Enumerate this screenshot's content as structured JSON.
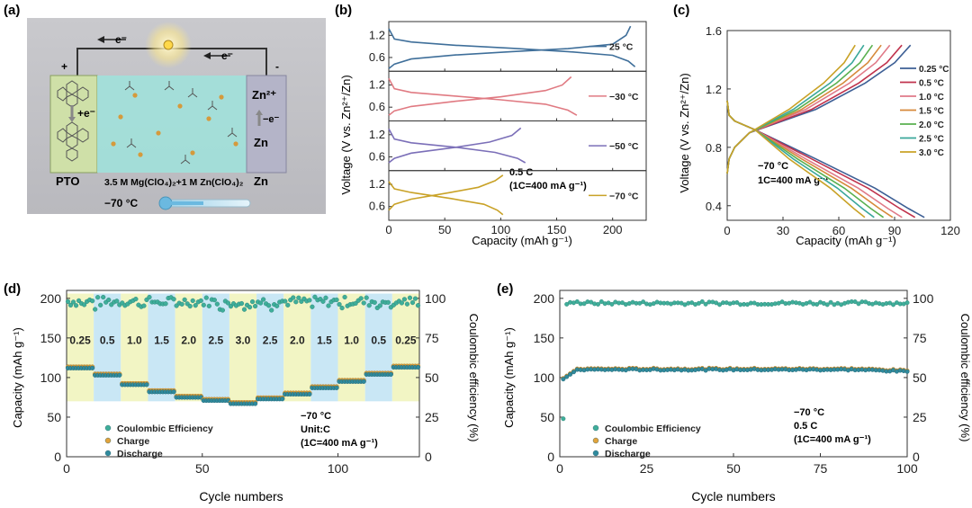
{
  "colors": {
    "c25": "#3f6f9a",
    "cm30": "#e07a82",
    "cm50": "#7b6fb8",
    "cm70": "#c9a227",
    "r025": "#3d5f95",
    "r05": "#c0334d",
    "r10": "#e07a88",
    "r15": "#d6893a",
    "r20": "#5ab04f",
    "r25": "#3aa79a",
    "r30": "#c9a227",
    "ce": "#3fae9a",
    "charge": "#e2a33b",
    "discharge": "#2f8a9d",
    "band_yellow": "#f2f5c4",
    "band_blue": "#c9e7f5"
  },
  "panel_a": {
    "label": "(a)",
    "electron1": "e⁻",
    "electron2": "e⁻",
    "plus": "+",
    "minus": "-",
    "plus_e": "+e⁻",
    "minus_e": "−e⁻",
    "zn2": "Zn²⁺",
    "zn_mid": "Zn",
    "zn_bottom": "Zn",
    "pto": "PTO",
    "electrolyte": "3.5 M Mg(ClO₄)₂+1 M Zn(ClO₄)₂",
    "temp": "−70 °C"
  },
  "chart_data": [
    {
      "id": "b",
      "type": "line",
      "label": "(b)",
      "xlabel": "Capacity (mAh g⁻¹)",
      "ylabel": "Voltage (V vs. Zn²⁺/Zn)",
      "xlim": [
        0,
        230
      ],
      "xticks": [
        0,
        50,
        100,
        150,
        200
      ],
      "subplots": [
        {
          "name": "25 °C",
          "ylim": [
            0.3,
            1.5
          ],
          "yticks": [
            0.6,
            1.2
          ],
          "charge_x": [
            0,
            5,
            20,
            60,
            110,
            160,
            200,
            212,
            216
          ],
          "charge_y": [
            0.3,
            0.42,
            0.56,
            0.67,
            0.76,
            0.84,
            0.96,
            1.2,
            1.45
          ],
          "discharge_x": [
            0,
            5,
            20,
            60,
            110,
            160,
            200,
            214,
            220
          ],
          "discharge_y": [
            1.38,
            1.1,
            1.02,
            0.93,
            0.85,
            0.76,
            0.66,
            0.5,
            0.35
          ]
        },
        {
          "name": "−30 °C",
          "ylim": [
            0.3,
            1.5
          ],
          "yticks": [
            0.6,
            1.2
          ],
          "charge_x": [
            0,
            5,
            20,
            60,
            100,
            140,
            155,
            163
          ],
          "charge_y": [
            0.38,
            0.5,
            0.62,
            0.76,
            0.88,
            1.05,
            1.2,
            1.42
          ],
          "discharge_x": [
            0,
            5,
            20,
            60,
            100,
            140,
            160,
            168
          ],
          "discharge_y": [
            1.38,
            1.1,
            1.0,
            0.9,
            0.8,
            0.68,
            0.52,
            0.38
          ]
        },
        {
          "name": "−50 °C",
          "ylim": [
            0.3,
            1.5
          ],
          "yticks": [
            0.6,
            1.2
          ],
          "charge_x": [
            0,
            5,
            20,
            60,
            90,
            110,
            118
          ],
          "charge_y": [
            0.44,
            0.56,
            0.7,
            0.86,
            1.0,
            1.18,
            1.38
          ],
          "discharge_x": [
            0,
            5,
            20,
            60,
            95,
            115,
            122
          ],
          "discharge_y": [
            1.36,
            1.08,
            0.98,
            0.86,
            0.72,
            0.56,
            0.44
          ]
        },
        {
          "name": "−70 °C",
          "ylim": [
            0.3,
            1.5
          ],
          "yticks": [
            0.6,
            1.2
          ],
          "charge_x": [
            0,
            5,
            20,
            55,
            80,
            95,
            102
          ],
          "charge_y": [
            0.5,
            0.66,
            0.8,
            0.98,
            1.12,
            1.3,
            1.45
          ],
          "discharge_x": [
            0,
            5,
            20,
            55,
            85,
            97,
            102
          ],
          "discharge_y": [
            1.28,
            1.08,
            0.98,
            0.82,
            0.66,
            0.5,
            0.38
          ]
        }
      ],
      "annotation_rate": "0.5 C",
      "annotation_def": "(1C=400 mA g⁻¹)"
    },
    {
      "id": "c",
      "type": "line",
      "label": "(c)",
      "xlabel": "Capacity (mAh g⁻¹)",
      "ylabel": "Voltage (V vs. Zn²⁺/Zn)",
      "xlim": [
        0,
        120
      ],
      "ylim": [
        0.3,
        1.6
      ],
      "xticks": [
        0,
        30,
        60,
        90,
        120
      ],
      "yticks": [
        0.4,
        0.8,
        1.2,
        1.6
      ],
      "series": [
        {
          "name": "0.25 °C",
          "cap": 106
        },
        {
          "name": "0.5 °C",
          "cap": 101
        },
        {
          "name": "1.0 °C",
          "cap": 94
        },
        {
          "name": "1.5 °C",
          "cap": 89
        },
        {
          "name": "2.0 °C",
          "cap": 84
        },
        {
          "name": "2.5 °C",
          "cap": 79
        },
        {
          "name": "3.0 °C",
          "cap": 74
        }
      ],
      "annotation_temp": "−70 °C",
      "annotation_def": "1C=400 mA g⁻¹"
    },
    {
      "id": "d",
      "type": "scatter",
      "label": "(d)",
      "xlabel": "Cycle numbers",
      "ylabel_left": "Capacity (mAh g⁻¹)",
      "ylabel_right": "Coulombic efficiency (%)",
      "xlim": [
        0,
        130
      ],
      "ylim_left": [
        0,
        210
      ],
      "ylim_right": [
        0,
        105
      ],
      "xticks": [
        0,
        50,
        100
      ],
      "yticks_left": [
        0,
        50,
        100,
        150,
        200
      ],
      "yticks_right": [
        0,
        25,
        50,
        75,
        100
      ],
      "segments": [
        {
          "rate": "0.25",
          "start": 0,
          "end": 10,
          "cap": 112
        },
        {
          "rate": "0.5",
          "start": 10,
          "end": 20,
          "cap": 103
        },
        {
          "rate": "1.0",
          "start": 20,
          "end": 30,
          "cap": 91
        },
        {
          "rate": "1.5",
          "start": 30,
          "end": 40,
          "cap": 82
        },
        {
          "rate": "2.0",
          "start": 40,
          "end": 50,
          "cap": 75
        },
        {
          "rate": "2.5",
          "start": 50,
          "end": 60,
          "cap": 71
        },
        {
          "rate": "3.0",
          "start": 60,
          "end": 70,
          "cap": 67
        },
        {
          "rate": "2.5",
          "start": 70,
          "end": 80,
          "cap": 73
        },
        {
          "rate": "2.0",
          "start": 80,
          "end": 90,
          "cap": 79
        },
        {
          "rate": "1.5",
          "start": 90,
          "end": 100,
          "cap": 87
        },
        {
          "rate": "1.0",
          "start": 100,
          "end": 110,
          "cap": 95
        },
        {
          "rate": "0.5",
          "start": 110,
          "end": 120,
          "cap": 104
        },
        {
          "rate": "0.25",
          "start": 120,
          "end": 130,
          "cap": 113
        }
      ],
      "legend": [
        "Coulombic Efficiency",
        "Charge",
        "Discharge"
      ],
      "annotation_temp": "−70 °C",
      "annotation_unit": "Unit:C",
      "annotation_def": "(1C=400 mA g⁻¹)"
    },
    {
      "id": "e",
      "type": "scatter",
      "label": "(e)",
      "xlabel": "Cycle numbers",
      "ylabel_left": "Capacity (mAh g⁻¹)",
      "ylabel_right": "Coulombic efficiency (%)",
      "xlim": [
        0,
        100
      ],
      "ylim_left": [
        0,
        210
      ],
      "ylim_right": [
        0,
        105
      ],
      "xticks": [
        0,
        25,
        50,
        75,
        100
      ],
      "yticks_left": [
        0,
        50,
        100,
        150,
        200
      ],
      "yticks_right": [
        0,
        25,
        50,
        75,
        100
      ],
      "capacity_plateau": 110,
      "ce_plateau": 97,
      "legend": [
        "Coulombic Efficiency",
        "Charge",
        "Discharge"
      ],
      "annotation_temp": "−70 °C",
      "annotation_rate": "0.5 C",
      "annotation_def": "(1C=400 mA g⁻¹)"
    }
  ]
}
